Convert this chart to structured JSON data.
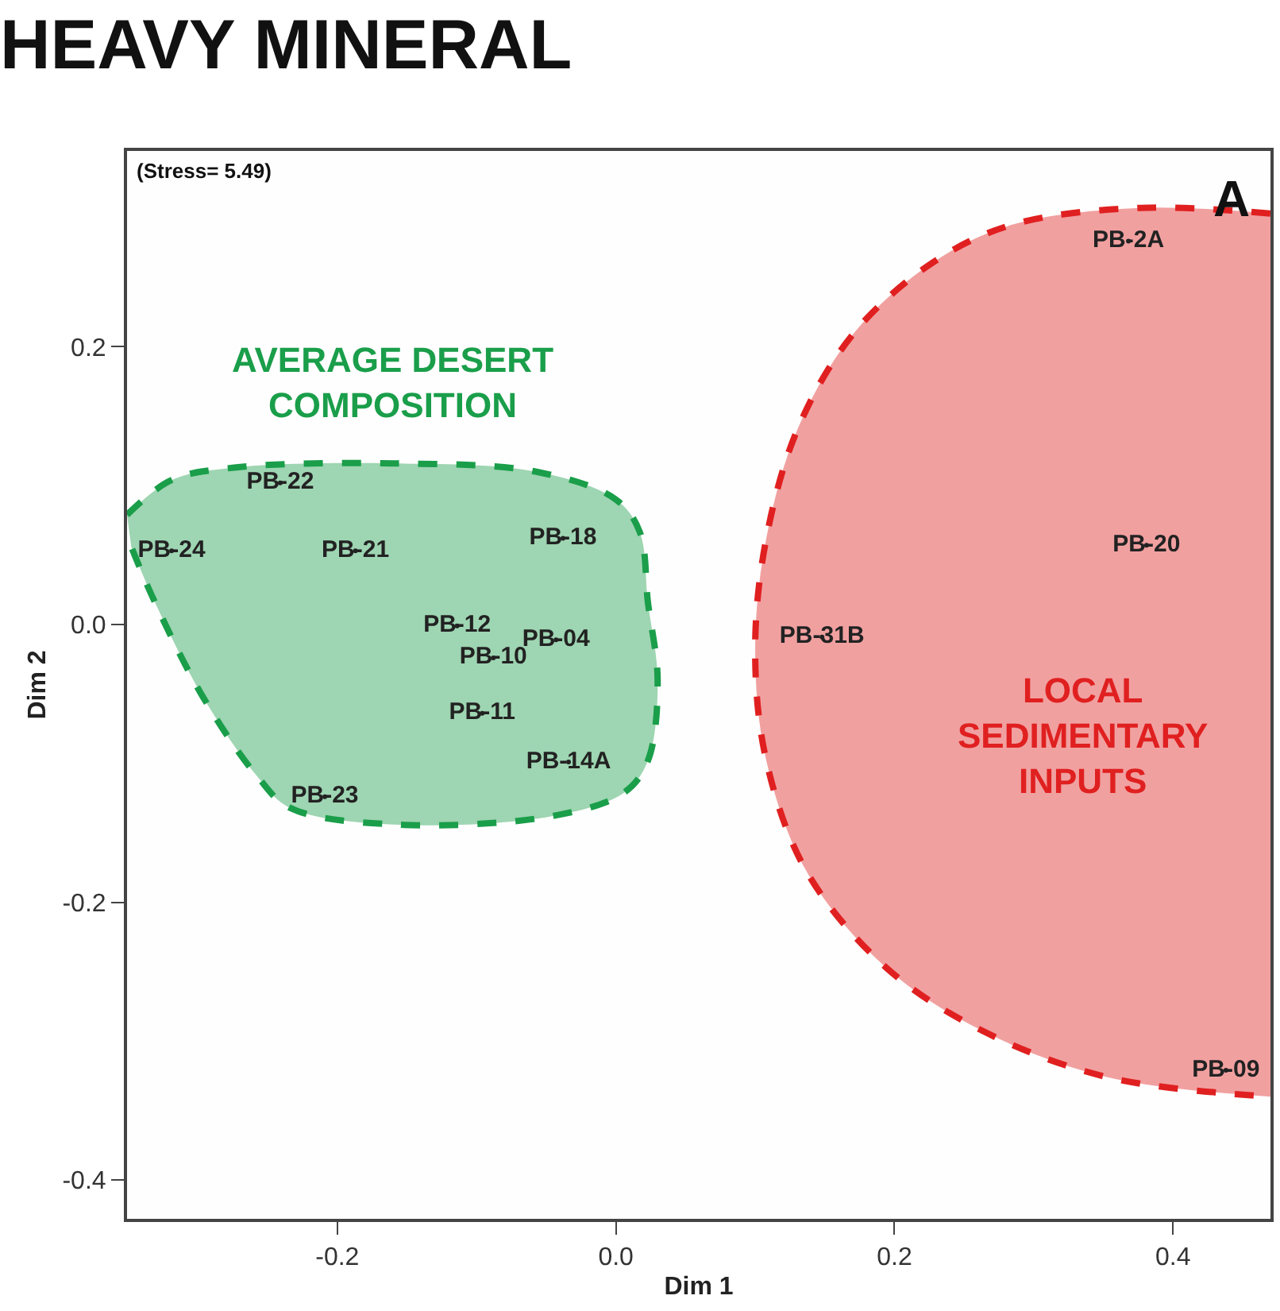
{
  "chart_data": {
    "type": "scatter",
    "title": "HEAVY MINERAL",
    "xlabel": "Dim 1",
    "ylabel": "Dim 2",
    "xlim": [
      -0.351,
      0.47
    ],
    "xticks": [
      -0.2,
      {
        "value": 0,
        "label": "0.0"
      },
      0.2,
      0.4
    ],
    "ylim": [
      -0.428,
      0.341
    ],
    "yticks": [
      -0.4,
      -0.2,
      {
        "value": 0,
        "label": "0.0"
      },
      0.2
    ],
    "annotations": [
      "(Stress= 5.49)",
      "A",
      "AVERAGE DESERT\nCOMPOSITION",
      "LOCAL\nSEDIMENTARY\nINPUTS"
    ],
    "series": [
      {
        "type": "area",
        "color": "#1a9e4a",
        "line_style": "dashed",
        "x": [
          -0.351,
          -0.319,
          -0.274,
          -0.16,
          -0.057,
          0.0,
          0.017,
          0.023,
          0.03,
          0.023,
          0.006,
          -0.046,
          -0.16,
          -0.234,
          -0.257,
          -0.296,
          -0.331,
          -0.348
        ],
        "values": [
          0.079,
          0.104,
          0.113,
          0.116,
          0.11,
          0.09,
          0.067,
          0.016,
          -0.041,
          -0.098,
          -0.121,
          -0.138,
          -0.144,
          -0.132,
          -0.11,
          -0.053,
          0.016,
          0.056
        ]
      },
      {
        "type": "area",
        "color": "#e02020",
        "line_style": "dashed",
        "x": [
          0.47,
          0.376,
          0.285,
          0.228,
          0.171,
          0.131,
          0.108,
          0.1,
          0.108,
          0.137,
          0.194,
          0.262,
          0.353,
          0.47
        ],
        "values": [
          0.296,
          0.3,
          0.288,
          0.261,
          0.21,
          0.142,
          0.062,
          -0.018,
          -0.098,
          -0.178,
          -0.247,
          -0.292,
          -0.326,
          -0.34
        ]
      },
      {
        "color": "#222222",
        "x": [
          0.368,
          0.381,
          0.148,
          0.438,
          -0.241,
          -0.319,
          -0.187,
          -0.038,
          -0.114,
          -0.043,
          -0.088,
          -0.096,
          -0.034,
          -0.209
        ],
        "values": [
          0.276,
          0.057,
          -0.009,
          -0.321,
          0.102,
          0.053,
          0.053,
          0.062,
          -0.001,
          -0.011,
          -0.024,
          -0.064,
          -0.099,
          -0.124
        ],
        "value_labels": [
          "PB-2A",
          "PB-20",
          "PB-31B",
          "PB-09",
          "PB-22",
          "PB-24",
          "PB-21",
          "PB-18",
          "PB-12",
          "PB-04",
          "PB-10",
          "PB-11",
          "PB-14A",
          "PB-23"
        ]
      }
    ]
  }
}
